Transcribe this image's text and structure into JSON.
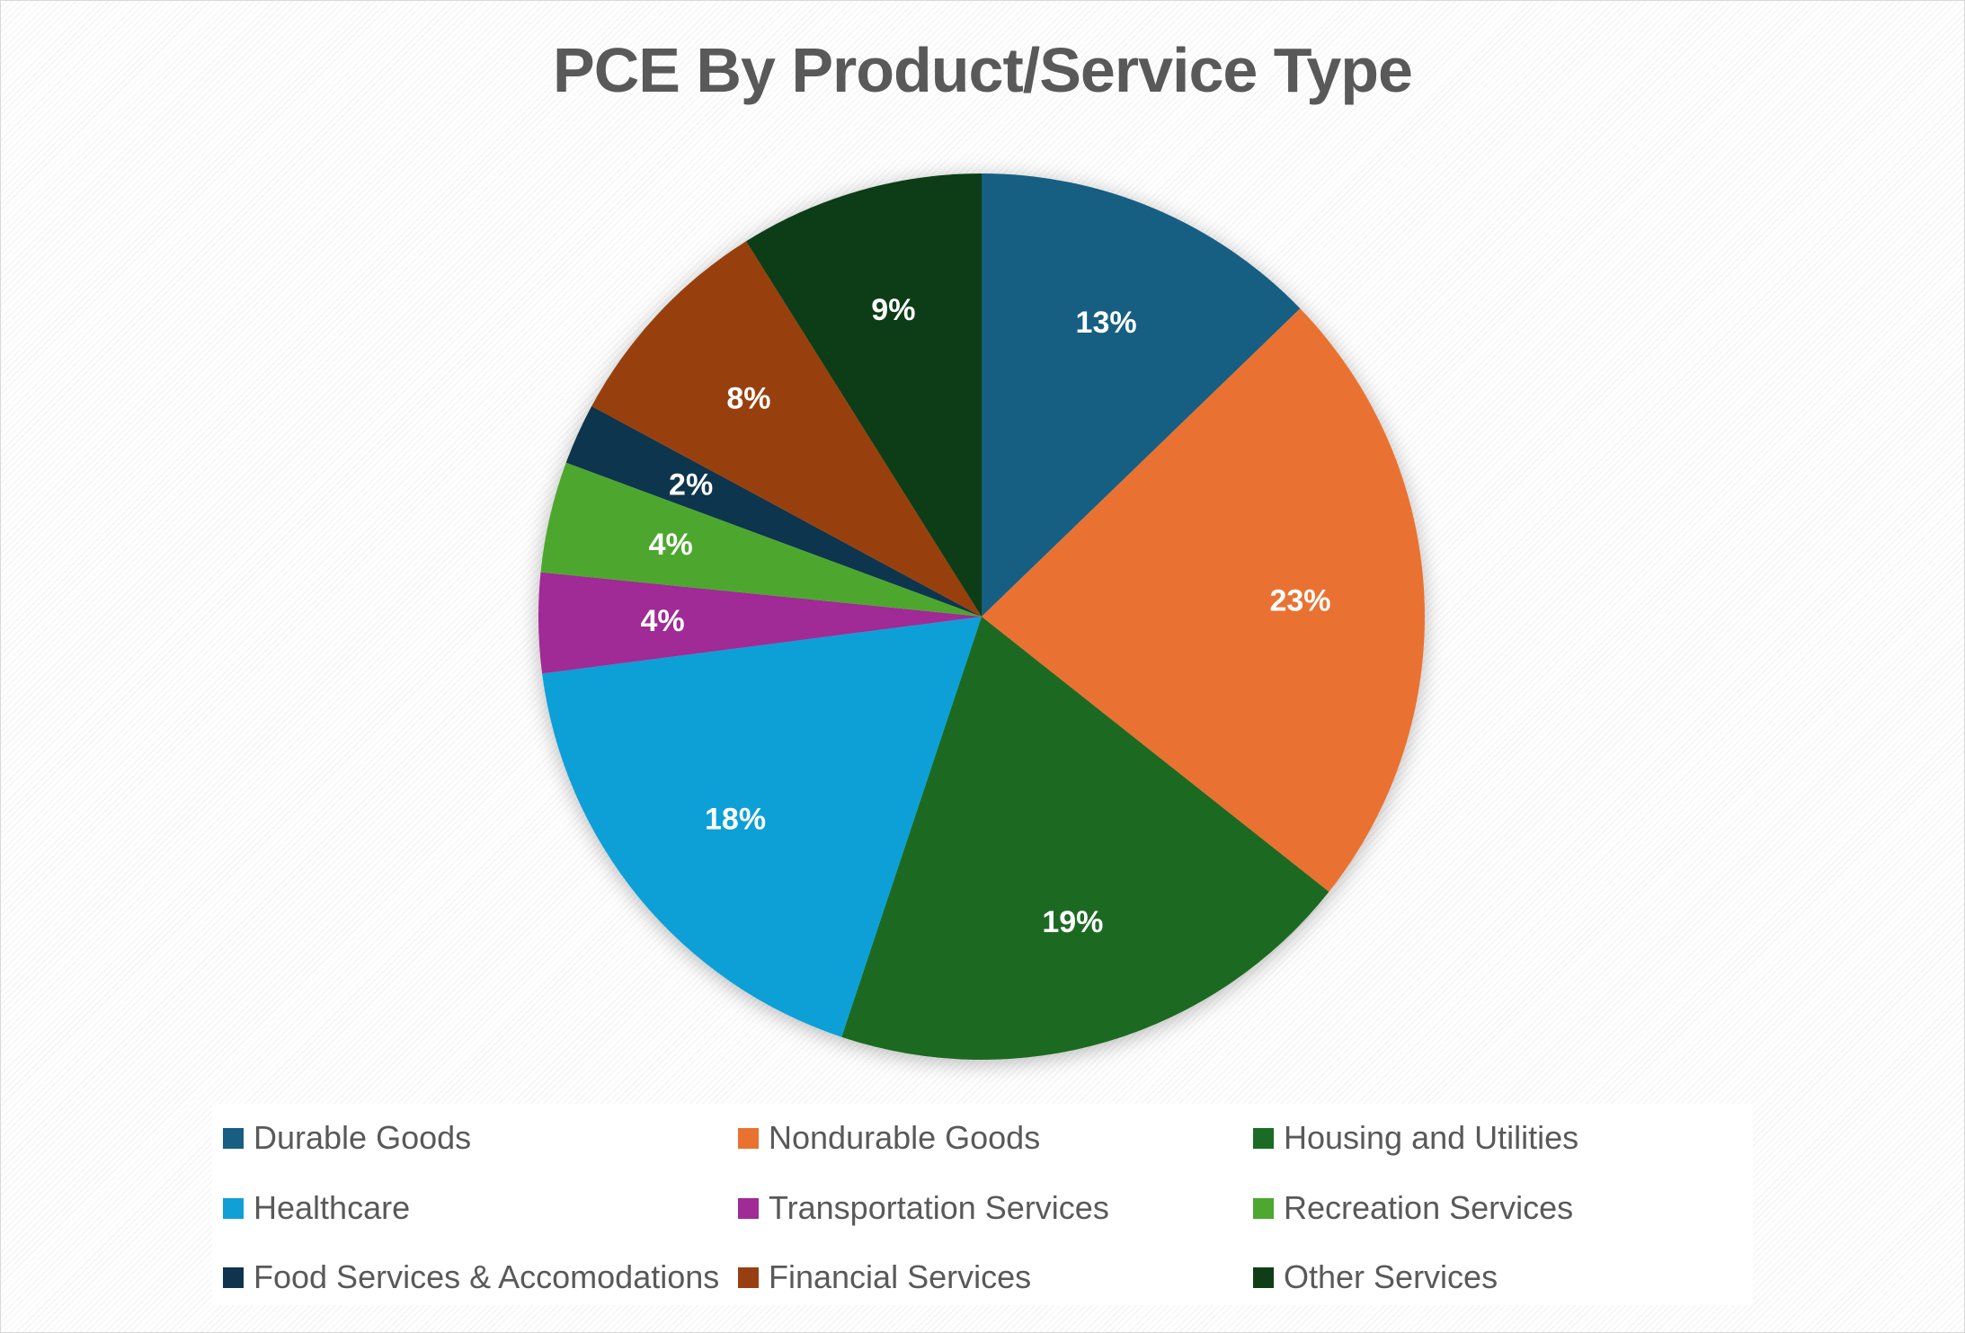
{
  "chart_data": {
    "type": "pie",
    "title": "PCE By Product/Service Type",
    "legend_position": "bottom",
    "slices": [
      {
        "name": "Durable Goods",
        "label": "13%",
        "value": 12.6,
        "color": "#175E82"
      },
      {
        "name": "Nondurable Goods",
        "label": "23%",
        "value": 22.6,
        "color": "#E97231"
      },
      {
        "name": "Housing and Utilities",
        "label": "19%",
        "value": 19.2,
        "color": "#1B6B24"
      },
      {
        "name": "Healthcare",
        "label": "18%",
        "value": 17.6,
        "color": "#10A0D6"
      },
      {
        "name": "Transportation Services",
        "label": "4%",
        "value": 3.6,
        "color": "#A02A96"
      },
      {
        "name": "Recreation Services",
        "label": "4%",
        "value": 4.0,
        "color": "#4EA72E"
      },
      {
        "name": "Food Services & Accomodations",
        "label": "2%",
        "value": 2.2,
        "color": "#10344E"
      },
      {
        "name": "Financial Services",
        "label": "8%",
        "value": 8.1,
        "color": "#983F11"
      },
      {
        "name": "Other Services",
        "label": "9%",
        "value": 8.8,
        "color": "#0F3E16"
      }
    ]
  }
}
